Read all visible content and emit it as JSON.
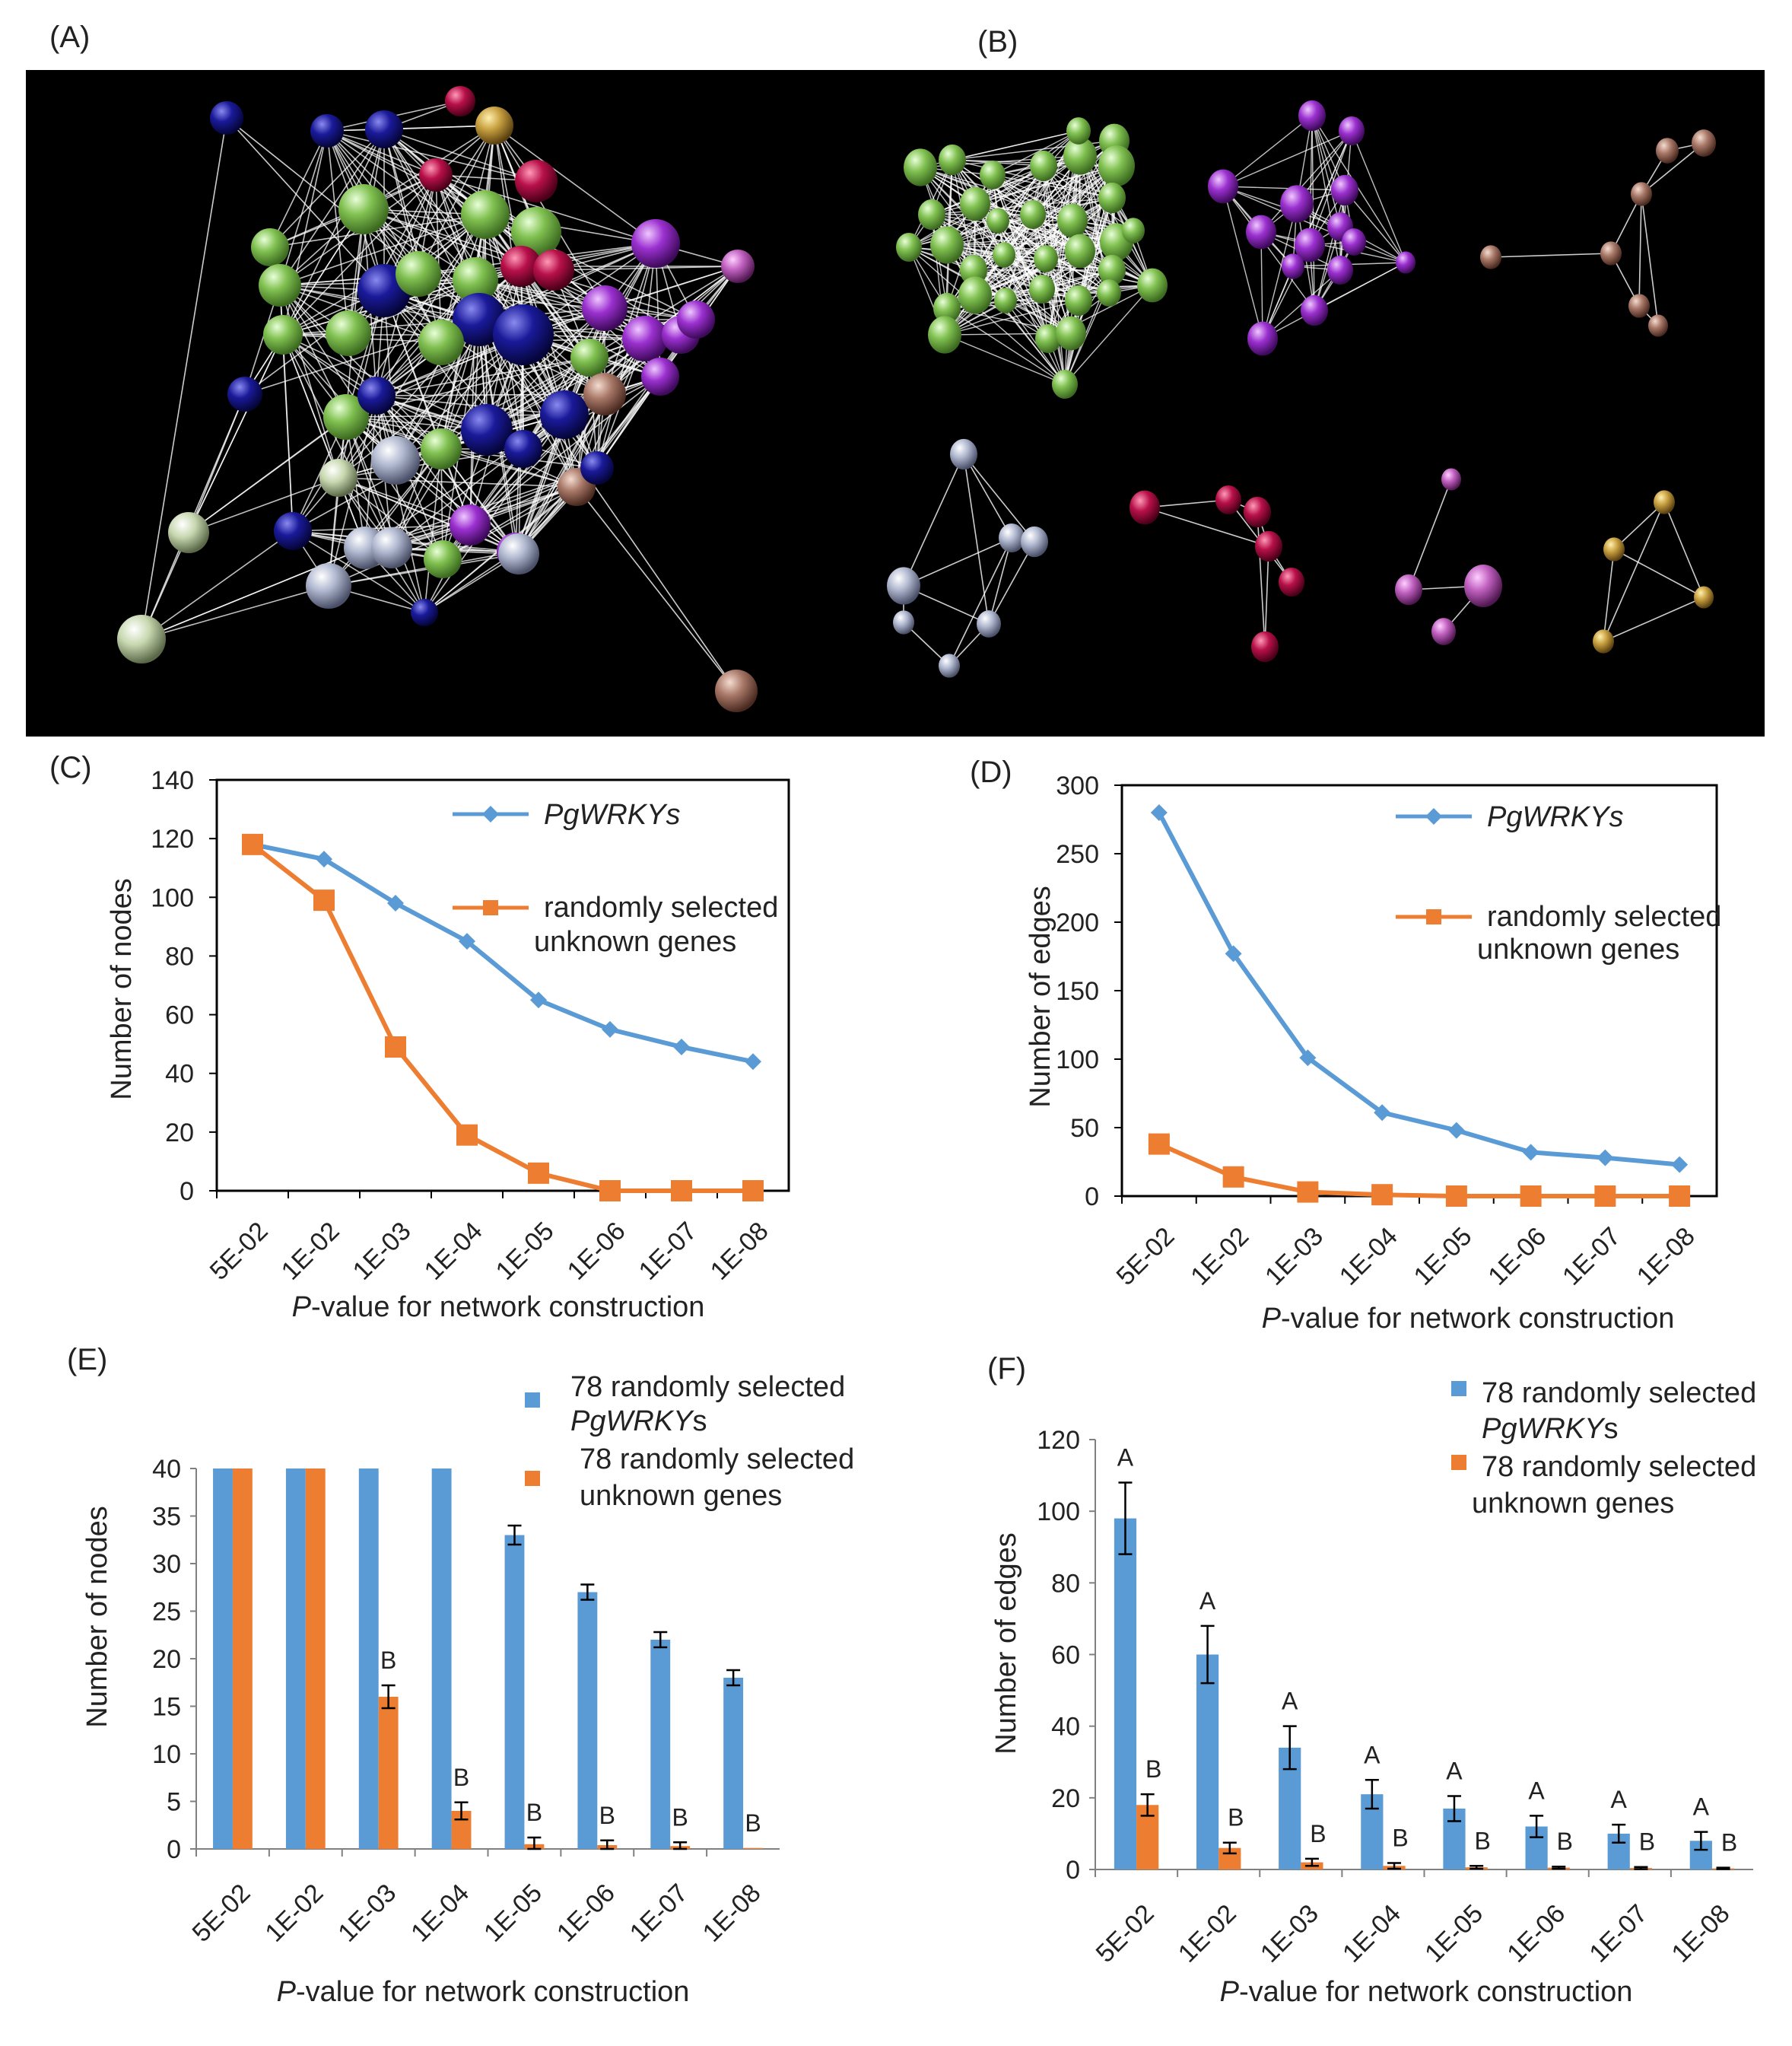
{
  "panels": {
    "A": {
      "letter": "(A)"
    },
    "B": {
      "letter": "(B)"
    }
  },
  "network": {
    "description_colors": [
      "#80c050",
      "#1a1a9a",
      "#9b30d0",
      "#b8104a",
      "#a87868",
      "#c8a040",
      "#b0b8d0",
      "#c060c0",
      "#c8d8b0"
    ]
  },
  "chart_data": [
    {
      "id": "C",
      "letter": "(C)",
      "type": "line",
      "categories": [
        "5E-02",
        "1E-02",
        "1E-03",
        "1E-04",
        "1E-05",
        "1E-06",
        "1E-07",
        "1E-08"
      ],
      "series": [
        {
          "name": "PgWRKYs",
          "color": "#5b9bd5",
          "marker": "diamond",
          "x": [
            0.5,
            1.5,
            2.5,
            3.5,
            4.5,
            5.5,
            6.5,
            7.5
          ],
          "values": [
            118,
            113,
            98,
            85,
            65,
            55,
            49,
            44
          ]
        },
        {
          "name_line1": "randomly selected",
          "name_line2": "unknown genes",
          "color": "#ed7d31",
          "marker": "square",
          "x": [
            0.5,
            1.5,
            2.5,
            3.5,
            4.5,
            5.5,
            6.5,
            7.5
          ],
          "values": [
            118,
            99,
            49,
            19,
            6,
            0,
            0,
            0
          ]
        }
      ],
      "yticks": [
        0,
        20,
        40,
        60,
        80,
        100,
        120,
        140
      ],
      "ylim": [
        0,
        140
      ],
      "ylabel": "Number of nodes",
      "xlabel_italic": "P",
      "xlabel_rest": "-value for network construction"
    },
    {
      "id": "D",
      "letter": "(D)",
      "type": "line",
      "categories": [
        "5E-02",
        "1E-02",
        "1E-03",
        "1E-04",
        "1E-05",
        "1E-06",
        "1E-07",
        "1E-08"
      ],
      "series": [
        {
          "name": "PgWRKYs",
          "color": "#5b9bd5",
          "marker": "diamond",
          "values": [
            280,
            177,
            101,
            61,
            48,
            32,
            28,
            23
          ]
        },
        {
          "name_line1": "randomly selected",
          "name_line2": "unknown genes",
          "color": "#ed7d31",
          "marker": "square",
          "values": [
            38,
            14,
            3,
            1,
            0,
            0,
            0,
            0
          ]
        }
      ],
      "yticks": [
        0,
        50,
        100,
        150,
        200,
        250,
        300
      ],
      "ylim": [
        0,
        300
      ],
      "ylabel": "Number of edges",
      "xlabel_italic": "P",
      "xlabel_rest": "-value for network construction"
    },
    {
      "id": "E",
      "letter": "(E)",
      "type": "bar",
      "categories": [
        "5E-02",
        "1E-02",
        "1E-03",
        "1E-04",
        "1E-05",
        "1E-06",
        "1E-07",
        "1E-08"
      ],
      "series": [
        {
          "name_line1": "78 randomly selected",
          "name_italic": "PgWRKY",
          "name_suffix": "s",
          "color": "#5b9bd5",
          "values": [
            40,
            40,
            40,
            40,
            33,
            27,
            22,
            18
          ],
          "errors": [
            0,
            0,
            0,
            0,
            1.0,
            0.8,
            0.8,
            0.8
          ],
          "labels": [
            "",
            "",
            "",
            "",
            "",
            "",
            "",
            ""
          ]
        },
        {
          "name_line1": "78 randomly selected",
          "name_line2": "unknown  genes",
          "color": "#ed7d31",
          "values": [
            40,
            40,
            16,
            4,
            0.5,
            0.4,
            0.3,
            0.1
          ],
          "errors": [
            0,
            0,
            1.2,
            0.9,
            0.7,
            0.5,
            0.4,
            0
          ],
          "labels": [
            "",
            "",
            "B",
            "B",
            "B",
            "B",
            "B",
            "B"
          ]
        }
      ],
      "yticks": [
        0,
        5,
        10,
        15,
        20,
        25,
        30,
        35,
        40
      ],
      "ylim": [
        0,
        40
      ],
      "ylabel": "Number of nodes",
      "xlabel_italic": "P",
      "xlabel_rest": "-value for network construction"
    },
    {
      "id": "F",
      "letter": "(F)",
      "type": "bar",
      "categories": [
        "5E-02",
        "1E-02",
        "1E-03",
        "1E-04",
        "1E-05",
        "1E-06",
        "1E-07",
        "1E-08"
      ],
      "series": [
        {
          "name_line1": "78 randomly selected",
          "name_italic": "PgWRKY",
          "name_suffix": "s",
          "color": "#5b9bd5",
          "values": [
            98,
            60,
            34,
            21,
            17,
            12,
            10,
            8
          ],
          "errors": [
            10,
            8,
            6,
            4,
            3.5,
            3,
            2.5,
            2.5
          ],
          "labels": [
            "A",
            "A",
            "A",
            "A",
            "A",
            "A",
            "A",
            "A"
          ]
        },
        {
          "name_line1": "78 randomly selected",
          "name_line2": "unknown  genes",
          "color": "#ed7d31",
          "values": [
            18,
            6,
            2,
            1,
            0.6,
            0.5,
            0.4,
            0.3
          ],
          "errors": [
            3,
            1.5,
            1,
            0.8,
            0.4,
            0.3,
            0.3,
            0.2
          ],
          "labels": [
            "B",
            "B",
            "B",
            "B",
            "B",
            "B",
            "B",
            "B"
          ]
        }
      ],
      "yticks": [
        0,
        20,
        40,
        60,
        80,
        100,
        120
      ],
      "ylim": [
        0,
        120
      ],
      "ylabel": "Number of edges",
      "xlabel_italic": "P",
      "xlabel_rest": "-value for network construction"
    }
  ]
}
